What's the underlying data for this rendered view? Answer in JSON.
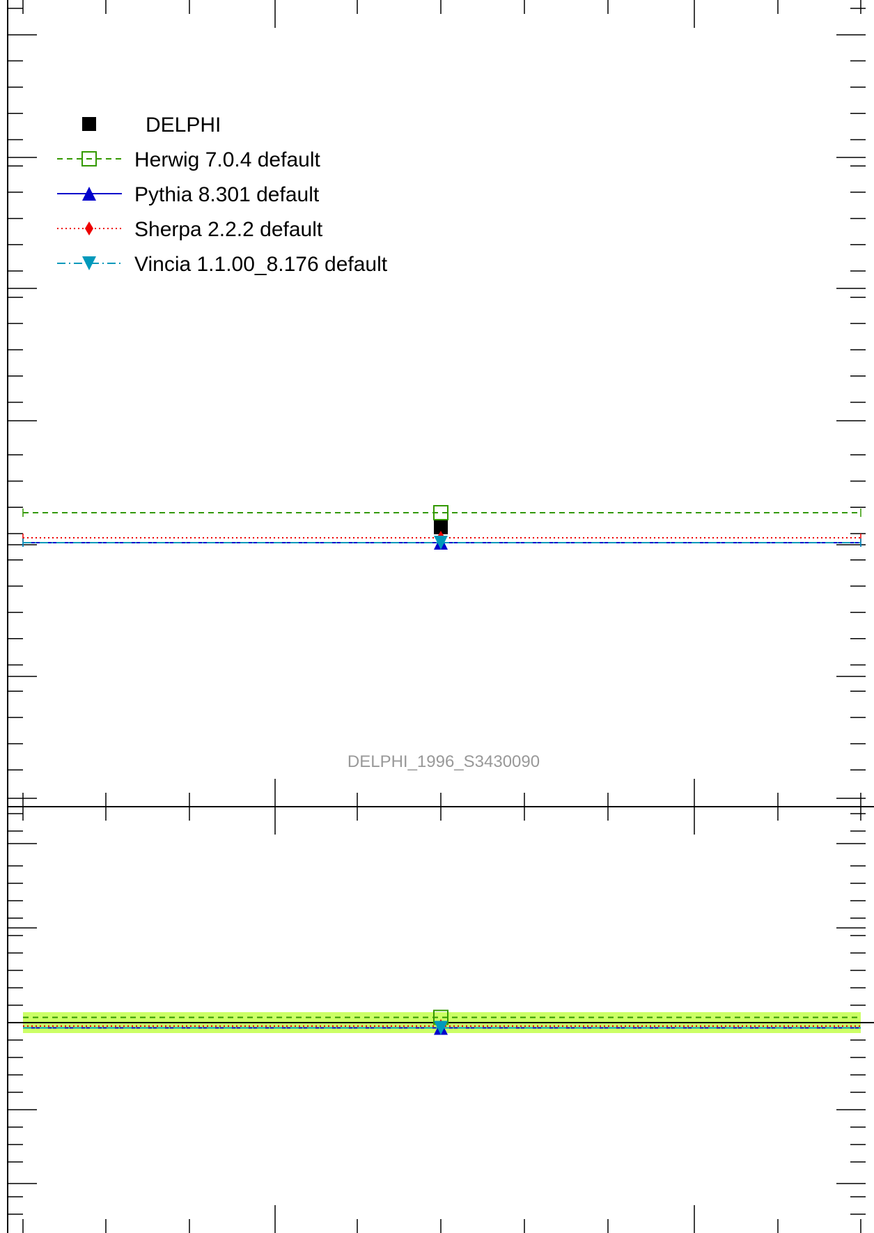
{
  "chart_data": [
    {
      "type": "line",
      "panel": "main",
      "title": "",
      "xlabel": "",
      "ylabel": "",
      "x_bin": [
        0,
        1
      ],
      "y_scale": "linear",
      "legend_placement": "top-left",
      "grid": false,
      "annotation": "DELPHI_1996_S3430090",
      "series": [
        {
          "name": "DELPHI",
          "color": "#000000",
          "marker": "filled-square",
          "line_style": "none",
          "values": [
            0.0
          ]
        },
        {
          "name": "Herwig 7.0.4 default",
          "color": "#339900",
          "marker": "open-square",
          "line_style": "dashed",
          "values": [
            0.021
          ]
        },
        {
          "name": "Pythia 8.301 default",
          "color": "#0000cc",
          "marker": "triangle-up",
          "line_style": "solid",
          "values": [
            -0.022
          ]
        },
        {
          "name": "Sherpa 2.2.2 default",
          "color": "#ee0000",
          "marker": "diamond",
          "line_style": "dotted",
          "values": [
            -0.015
          ]
        },
        {
          "name": "Vincia 1.1.00_8.176 default",
          "color": "#0099bb",
          "marker": "triangle-down",
          "line_style": "dashdot",
          "values": [
            -0.022
          ]
        }
      ]
    },
    {
      "type": "line",
      "panel": "ratio",
      "title": "",
      "xlabel": "",
      "ylabel": "",
      "reference": 1.0,
      "uncertainty_band_color": "#ccff66",
      "series": [
        {
          "name": "Herwig 7.0.4 default",
          "color": "#339900",
          "values": [
            1.003
          ]
        },
        {
          "name": "Pythia 8.301 default",
          "color": "#0000cc",
          "values": [
            0.997
          ]
        },
        {
          "name": "Sherpa 2.2.2 default",
          "color": "#ee0000",
          "values": [
            0.998
          ]
        },
        {
          "name": "Vincia 1.1.00_8.176 default",
          "color": "#0099bb",
          "values": [
            0.997
          ]
        }
      ]
    }
  ]
}
